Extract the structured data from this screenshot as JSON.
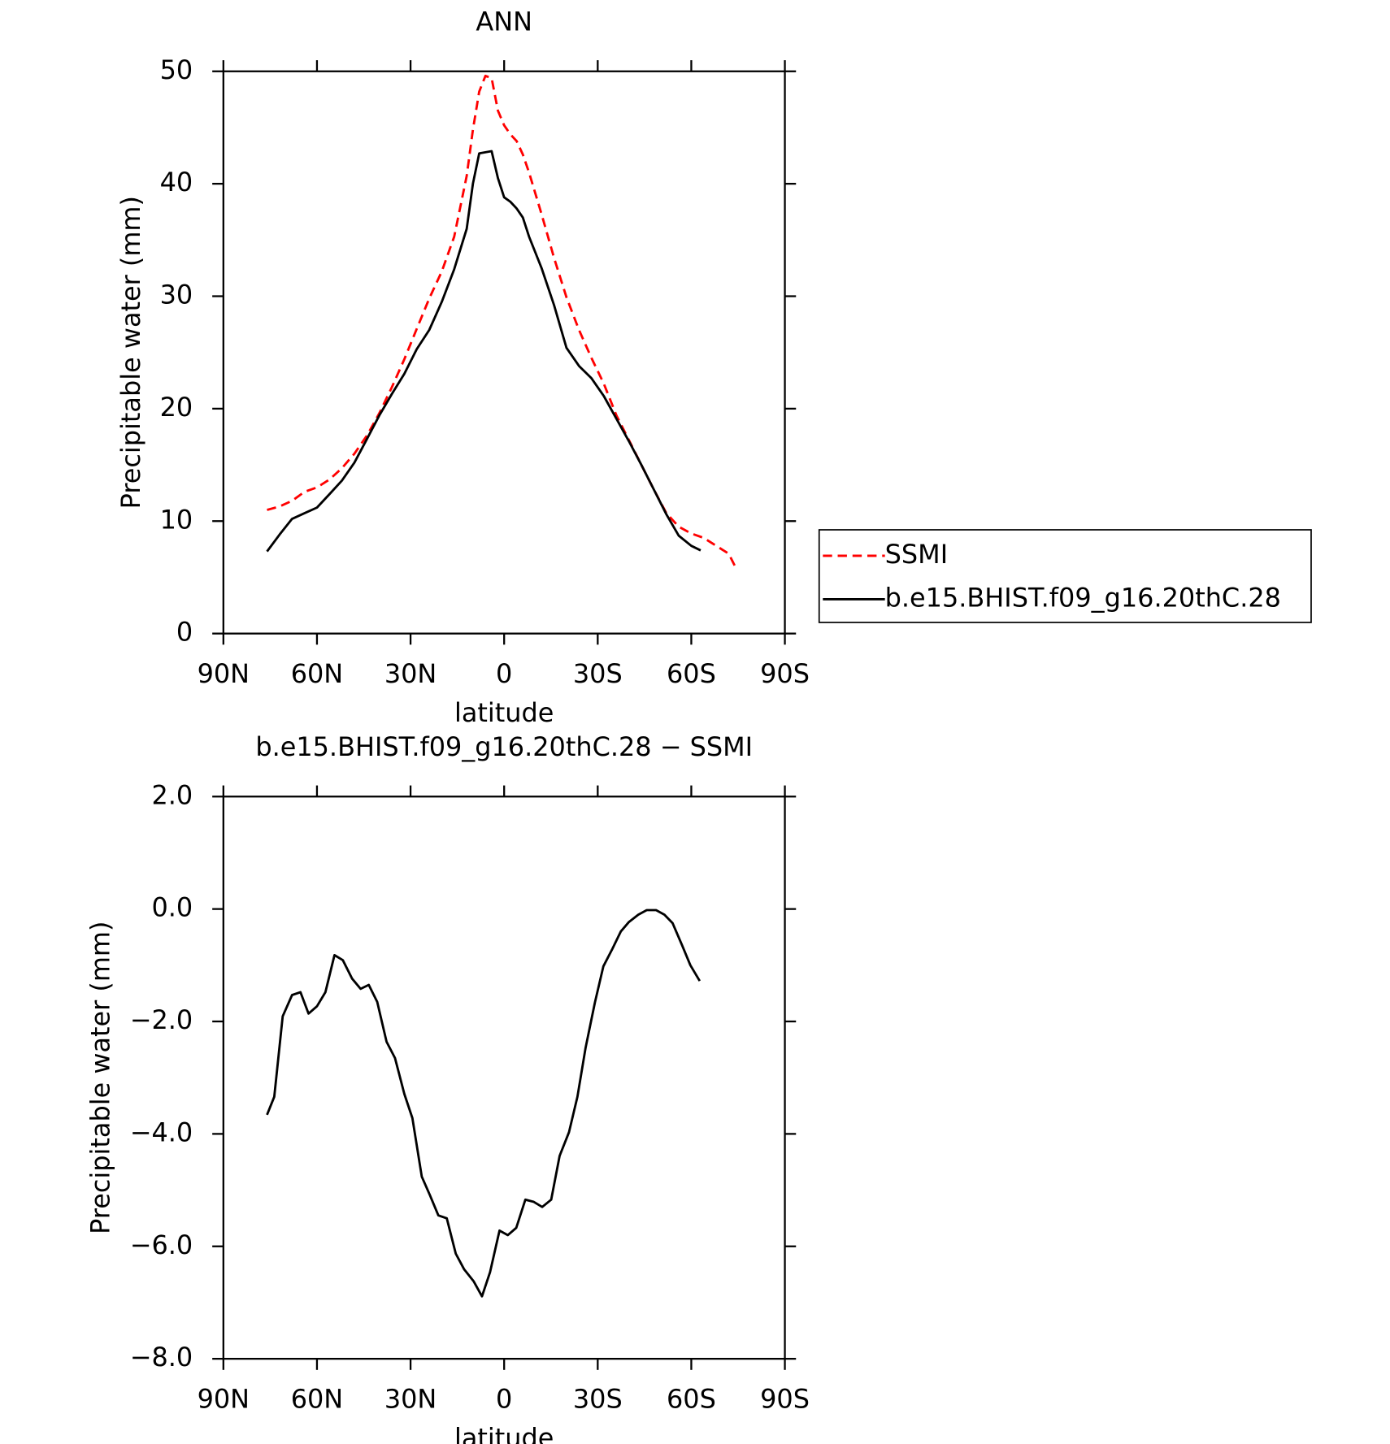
{
  "chart_data": [
    {
      "type": "line",
      "title": "ANN",
      "xlabel": "latitude",
      "ylabel": "Precipitable water (mm)",
      "xlim": [
        90,
        -90
      ],
      "xticks": [
        {
          "value": 90,
          "label": "90N"
        },
        {
          "value": 60,
          "label": "60N"
        },
        {
          "value": 30,
          "label": "30N"
        },
        0,
        {
          "value": -30,
          "label": "30S"
        },
        {
          "value": -60,
          "label": "60S"
        },
        {
          "value": -90,
          "label": "90S"
        }
      ],
      "ylim": [
        0,
        50
      ],
      "yticks": [
        0,
        10,
        20,
        30,
        40,
        50
      ],
      "legend": "right outside",
      "series": [
        {
          "name": "SSMI",
          "color": "#ff0000",
          "line_style": "dashed",
          "x": [
            76,
            72,
            68,
            64,
            60,
            56,
            52,
            48,
            44,
            40,
            36,
            32,
            28,
            24,
            20,
            16,
            12,
            10,
            8,
            6,
            4,
            2,
            0,
            -2,
            -4,
            -6,
            -8,
            -12,
            -16,
            -20,
            -24,
            -28,
            -32,
            -36,
            -40,
            -44,
            -48,
            -52,
            -56,
            -60,
            -64,
            -68,
            -72,
            -74
          ],
          "values": [
            11.0,
            11.3,
            11.8,
            12.6,
            13.0,
            13.7,
            14.7,
            16.0,
            17.6,
            19.6,
            21.9,
            24.4,
            27.1,
            29.8,
            32.2,
            35.3,
            40.7,
            44.8,
            48.2,
            49.6,
            49.4,
            46.5,
            45.2,
            44.4,
            43.8,
            42.6,
            41.0,
            37.3,
            33.4,
            29.9,
            27.0,
            24.5,
            22.2,
            19.4,
            17.2,
            15.0,
            12.8,
            10.7,
            9.5,
            8.9,
            8.5,
            7.8,
            7.1,
            6.0
          ]
        },
        {
          "name": "b.e15.BHIST.f09_g16.20thC.28",
          "color": "#000000",
          "line_style": "solid",
          "x": [
            76,
            72,
            68,
            64,
            60,
            56,
            52,
            48,
            44,
            40,
            36,
            32,
            28,
            24,
            20,
            16,
            12,
            10,
            8,
            6,
            4,
            2,
            0,
            -2,
            -4,
            -6,
            -8,
            -12,
            -16,
            -20,
            -24,
            -28,
            -32,
            -36,
            -40,
            -44,
            -48,
            -52,
            -56,
            -60,
            -63
          ],
          "values": [
            7.3,
            8.8,
            10.2,
            10.7,
            11.2,
            12.4,
            13.6,
            15.2,
            17.3,
            19.4,
            21.3,
            23.1,
            25.3,
            27.0,
            29.5,
            32.4,
            36.0,
            40.0,
            42.7,
            42.8,
            42.9,
            40.5,
            38.8,
            38.4,
            37.8,
            37.0,
            35.3,
            32.5,
            29.2,
            25.4,
            23.8,
            22.7,
            21.1,
            19.1,
            17.1,
            15.0,
            12.8,
            10.6,
            8.7,
            7.8,
            7.4
          ]
        }
      ]
    },
    {
      "type": "line",
      "title": "b.e15.BHIST.f09_g16.20thC.28 − SSMI",
      "xlabel": "latitude",
      "ylabel": "Precipitable water (mm)",
      "xlim": [
        90,
        -90
      ],
      "xticks": [
        {
          "value": 90,
          "label": "90N"
        },
        {
          "value": 60,
          "label": "60N"
        },
        {
          "value": 30,
          "label": "30N"
        },
        0,
        {
          "value": -30,
          "label": "30S"
        },
        {
          "value": -60,
          "label": "60S"
        },
        {
          "value": -90,
          "label": "90S"
        }
      ],
      "ylim": [
        -8,
        2
      ],
      "yticks": [
        {
          "value": -8,
          "label": "−8.0"
        },
        {
          "value": -6,
          "label": "−6.0"
        },
        {
          "value": -4,
          "label": "−4.0"
        },
        {
          "value": -2,
          "label": "−2.0"
        },
        {
          "value": 0,
          "label": "0.0"
        },
        {
          "value": 2,
          "label": "2.0"
        }
      ],
      "series": [
        {
          "color": "#000000",
          "line_style": "solid",
          "x": [
            76,
            73.7,
            71,
            68,
            65.3,
            62.7,
            60,
            57.3,
            54.4,
            51.7,
            48.7,
            46,
            43.4,
            40.7,
            37.7,
            35,
            32,
            29.4,
            26.4,
            23.8,
            21.1,
            18.4,
            15.5,
            12.8,
            9.8,
            7.1,
            4.5,
            1.5,
            -1.2,
            -3.9,
            -6.8,
            -9.5,
            -12.2,
            -15.1,
            -17.8,
            -20.8,
            -23.5,
            -26.1,
            -29.1,
            -31.8,
            -34.7,
            -37.4,
            -40,
            -43,
            -45.7,
            -48.7,
            -51.4,
            -54,
            -57,
            -59.7,
            -62.7
          ],
          "values": [
            -3.66,
            -3.34,
            -1.91,
            -1.53,
            -1.48,
            -1.86,
            -1.73,
            -1.48,
            -0.82,
            -0.91,
            -1.24,
            -1.42,
            -1.35,
            -1.65,
            -2.36,
            -2.65,
            -3.29,
            -3.72,
            -4.76,
            -5.09,
            -5.45,
            -5.5,
            -6.13,
            -6.41,
            -6.62,
            -6.89,
            -6.46,
            -5.72,
            -5.8,
            -5.67,
            -5.17,
            -5.21,
            -5.3,
            -5.17,
            -4.39,
            -3.97,
            -3.34,
            -2.47,
            -1.66,
            -1.02,
            -0.71,
            -0.4,
            -0.23,
            -0.1,
            -0.02,
            -0.02,
            -0.1,
            -0.25,
            -0.64,
            -1.0,
            -1.28
          ]
        }
      ]
    }
  ]
}
